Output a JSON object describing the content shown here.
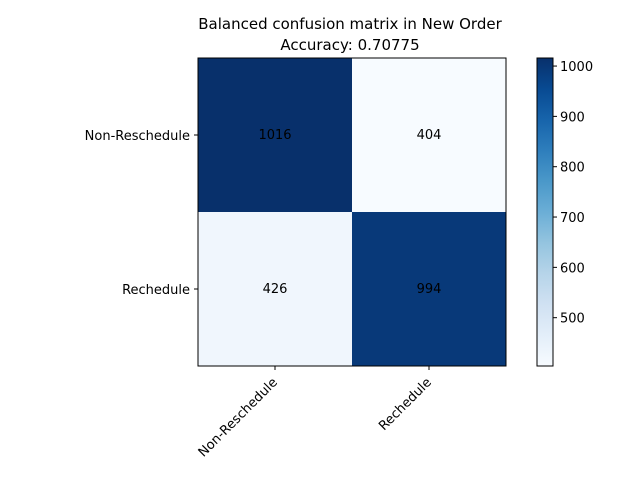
{
  "chart_data": {
    "type": "heatmap",
    "title": "Balanced confusion matrix in New Order",
    "subtitle": "Accuracy: 0.70775",
    "row_labels": [
      "Non-Reschedule",
      "Rechedule"
    ],
    "col_labels": [
      "Non-Reschedule",
      "Rechedule"
    ],
    "values": [
      [
        1016,
        404
      ],
      [
        426,
        994
      ]
    ],
    "colormap": "Blues",
    "color_range": [
      404,
      1016
    ],
    "colorbar_ticks": [
      500,
      600,
      700,
      800,
      900,
      1000
    ],
    "xlabel": "",
    "ylabel": "",
    "grid": false
  }
}
